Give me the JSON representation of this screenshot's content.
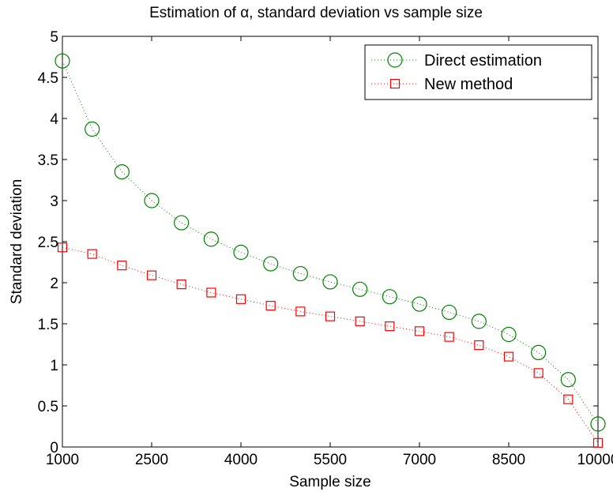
{
  "chart_data": {
    "type": "line",
    "title": "Estimation of α, standard deviation vs sample size",
    "xlabel": "Sample size",
    "ylabel": "Standard deviation",
    "xlim": [
      1000,
      10000
    ],
    "ylim": [
      0,
      5
    ],
    "x_ticks": [
      1000,
      2500,
      4000,
      5500,
      7000,
      8500,
      10000
    ],
    "y_ticks": [
      0,
      0.5,
      1,
      1.5,
      2,
      2.5,
      3,
      3.5,
      4,
      4.5,
      5
    ],
    "y_tick_labels": [
      "0",
      "0.5",
      "1",
      "1.5",
      "2",
      "2.5",
      "3",
      "3.5",
      "4",
      "4.5",
      "5"
    ],
    "grid": false,
    "legend_position": "top-right",
    "x": [
      1000,
      1500,
      2000,
      2500,
      3000,
      3500,
      4000,
      4500,
      5000,
      5500,
      6000,
      6500,
      7000,
      7500,
      8000,
      8500,
      9000,
      9500,
      10000
    ],
    "series": [
      {
        "name": "Direct estimation",
        "color": "#008000",
        "marker": "circle",
        "line_style": "dotted",
        "values": [
          4.7,
          3.87,
          3.35,
          3.0,
          2.73,
          2.53,
          2.37,
          2.23,
          2.11,
          2.01,
          1.92,
          1.83,
          1.74,
          1.64,
          1.53,
          1.37,
          1.15,
          0.82,
          0.28
        ]
      },
      {
        "name": "New method",
        "color": "#ff0000",
        "marker": "square",
        "line_style": "dotted",
        "values": [
          2.43,
          2.35,
          2.21,
          2.09,
          1.98,
          1.88,
          1.8,
          1.72,
          1.65,
          1.59,
          1.53,
          1.47,
          1.41,
          1.34,
          1.24,
          1.1,
          0.9,
          0.58,
          0.05
        ]
      }
    ]
  }
}
